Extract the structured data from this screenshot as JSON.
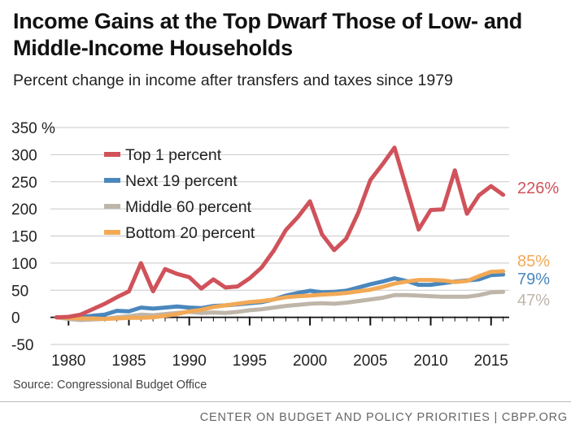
{
  "title": "Income Gains at the Top Dwarf Those of Low- and Middle-Income Households",
  "subtitle": "Percent change in income after transfers and taxes since 1979",
  "source": "Source: Congressional Budget Office",
  "footer": "CENTER ON BUDGET AND POLICY PRIORITIES | CBPP.ORG",
  "chart_data": {
    "type": "line",
    "title": "Income Gains at the Top Dwarf Those of Low- and Middle-Income Households",
    "subtitle": "Percent change in income after transfers and taxes since 1979",
    "xlabel": "",
    "ylabel": "",
    "xlim": [
      1978.5,
      2016.5
    ],
    "ylim": [
      -50,
      350
    ],
    "yticks": [
      -50,
      0,
      50,
      100,
      150,
      200,
      250,
      300,
      350
    ],
    "ytick_labels": [
      "-50",
      "0",
      "50",
      "100",
      "150",
      "200",
      "250",
      "300",
      "350 %"
    ],
    "xticks": [
      1980,
      1985,
      1990,
      1995,
      2000,
      2005,
      2010,
      2015
    ],
    "xtick_labels": [
      "1980",
      "1985",
      "1990",
      "1995",
      "2000",
      "2005",
      "2010",
      "2015"
    ],
    "grid": true,
    "legend": "top-left",
    "x": [
      1979,
      1980,
      1981,
      1982,
      1983,
      1984,
      1985,
      1986,
      1987,
      1988,
      1989,
      1990,
      1991,
      1992,
      1993,
      1994,
      1995,
      1996,
      1997,
      1998,
      1999,
      2000,
      2001,
      2002,
      2003,
      2004,
      2005,
      2006,
      2007,
      2008,
      2009,
      2010,
      2011,
      2012,
      2013,
      2014,
      2015,
      2016
    ],
    "series": [
      {
        "name": "Top 1 percent",
        "color": "#d0525a",
        "end_label": "226%",
        "values": [
          0,
          1,
          5,
          15,
          25,
          37,
          48,
          100,
          48,
          89,
          80,
          74,
          53,
          70,
          55,
          57,
          72,
          92,
          123,
          161,
          185,
          214,
          153,
          124,
          145,
          193,
          253,
          282,
          313,
          238,
          162,
          198,
          199,
          271,
          191,
          225,
          242,
          226
        ]
      },
      {
        "name": "Next 19 percent",
        "color": "#4a87bd",
        "end_label": "79%",
        "values": [
          0,
          0,
          0,
          3,
          5,
          12,
          11,
          18,
          16,
          18,
          20,
          18,
          17,
          21,
          22,
          24,
          26,
          28,
          33,
          40,
          45,
          49,
          46,
          47,
          49,
          55,
          61,
          66,
          72,
          67,
          60,
          60,
          63,
          66,
          68,
          70,
          78,
          79
        ]
      },
      {
        "name": "Middle 60 percent",
        "color": "#bfb6aa",
        "end_label": "47%",
        "values": [
          0,
          -3,
          -5,
          -4,
          -3,
          0,
          2,
          5,
          4,
          6,
          8,
          10,
          8,
          9,
          8,
          10,
          13,
          15,
          18,
          21,
          23,
          25,
          26,
          25,
          27,
          30,
          33,
          36,
          41,
          41,
          40,
          39,
          38,
          38,
          38,
          41,
          46,
          47
        ]
      },
      {
        "name": "Bottom 20 percent",
        "color": "#f2a956",
        "end_label": "85%",
        "values": [
          0,
          -1,
          -2,
          -2,
          -3,
          -2,
          -1,
          -1,
          0,
          3,
          6,
          11,
          14,
          19,
          22,
          25,
          28,
          30,
          33,
          37,
          39,
          40,
          42,
          43,
          45,
          48,
          51,
          56,
          62,
          66,
          69,
          69,
          68,
          65,
          67,
          76,
          84,
          85
        ]
      }
    ]
  }
}
